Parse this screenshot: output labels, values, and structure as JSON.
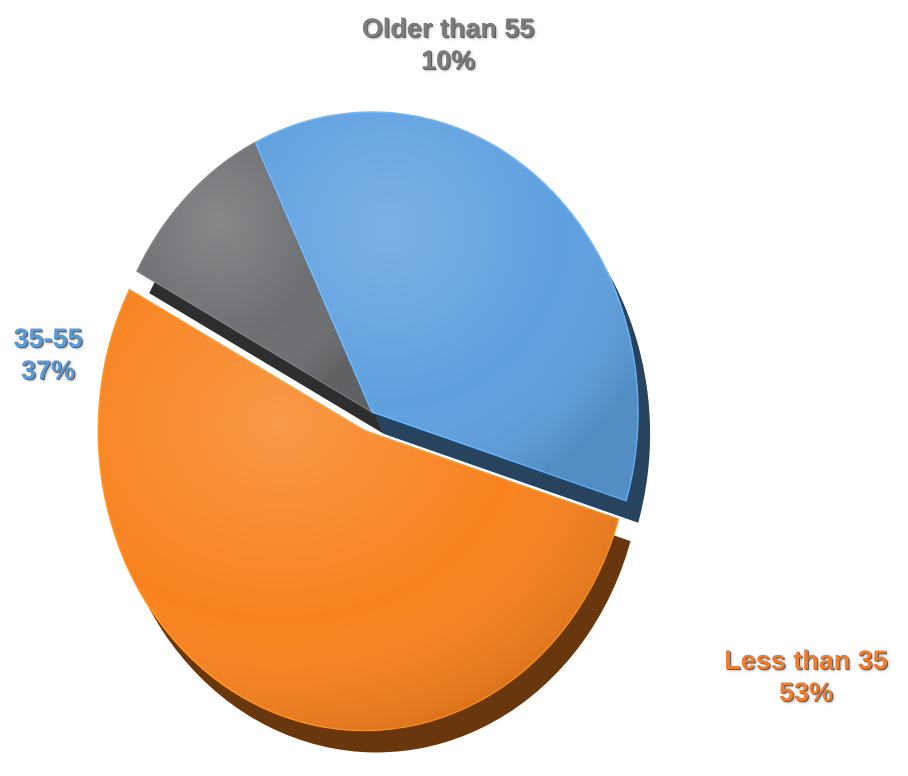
{
  "chart_data": {
    "type": "pie",
    "style": "3d-exploded",
    "slices": [
      {
        "key": "older",
        "label": "Older than 55",
        "value": 10,
        "value_text": "10%",
        "color": "#6d6e71",
        "label_color": "#7b7c7e"
      },
      {
        "key": "mid",
        "label": "35-55",
        "value": 37,
        "value_text": "37%",
        "color": "#5fa0df",
        "label_color": "#5b9bd5"
      },
      {
        "key": "less",
        "label": "Less than 35",
        "value": 53,
        "value_text": "53%",
        "color": "#f8821f",
        "label_color": "#ed7d31"
      }
    ],
    "legend": "none",
    "data_labels": "outside"
  }
}
